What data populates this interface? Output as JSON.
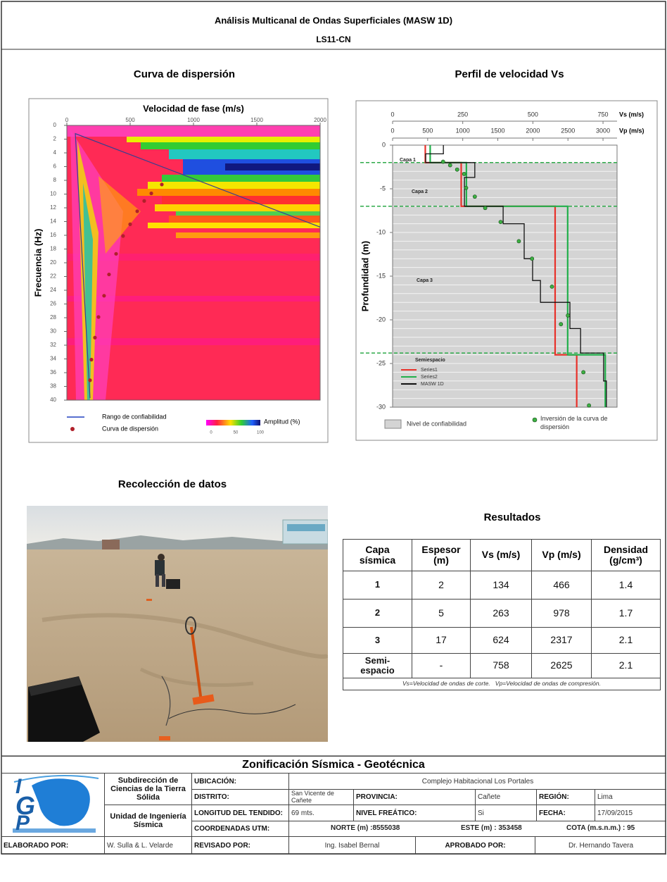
{
  "header": {
    "title": "Análisis Multicanal de Ondas Superficiales (MASW 1D)",
    "subtitle": "LS11-CN"
  },
  "chart_data": [
    {
      "type": "heatmap",
      "title": "Curva de dispersión",
      "x_label": "Velocidad de fase (m/s)",
      "y_label": "Frecuencia (Hz)",
      "xlim": [
        0,
        2000
      ],
      "xticks": [
        0,
        500,
        1000,
        1500,
        2000
      ],
      "ylim": [
        0,
        40
      ],
      "y_inverted": true,
      "yticks": [
        0,
        2,
        4,
        6,
        8,
        10,
        12,
        14,
        16,
        18,
        20,
        22,
        24,
        26,
        28,
        30,
        32,
        34,
        36,
        38,
        40
      ],
      "series": [
        {
          "name": "Rango de confiabilidad",
          "type": "line",
          "color": "#3a3f8f",
          "x": [
            2000,
            67,
            183
          ],
          "values": [
            14.8,
            1.2,
            39.7
          ]
        },
        {
          "name": "Curva de dispersión",
          "type": "scatter",
          "color": "#b0202a",
          "x": [
            750,
            667,
            611,
            556,
            500,
            444,
            389,
            333,
            294,
            250,
            222,
            194,
            183
          ],
          "values": [
            8.6,
            9.9,
            11.0,
            12.5,
            14.4,
            16.1,
            18.7,
            21.7,
            24.8,
            27.9,
            30.9,
            34.1,
            37.1
          ]
        }
      ],
      "colorbar": {
        "label": "Amplitud (%)",
        "ticks": [
          0,
          50,
          100
        ]
      }
    },
    {
      "type": "line",
      "title": "Perfil de velocidad Vs",
      "x_label": "Vs (m/s)",
      "x2_label": "Vp (m/s)",
      "y_label": "Profundidad (m)",
      "xlim": [
        0,
        800
      ],
      "xticks": [
        0,
        250,
        500,
        750
      ],
      "x2lim": [
        0,
        3200
      ],
      "x2ticks": [
        0,
        500,
        1000,
        1500,
        2000,
        2500,
        3000
      ],
      "ylim": [
        -30,
        0
      ],
      "yticks": [
        0,
        -5,
        -10,
        -15,
        -20,
        -25,
        -30
      ],
      "minor_grid": 1,
      "band": {
        "name": "Nivel de confiabilidad",
        "from": -2,
        "to": -30,
        "color": "#d4d4d4"
      },
      "layer_boundaries": [
        -2,
        -7,
        -23.8
      ],
      "boundary_color": "#2eaa4a",
      "annotations": [
        "Capa 1",
        "Capa 2",
        "Capa 3",
        "Semiespacio"
      ],
      "series": [
        {
          "name": "Series1",
          "type": "line",
          "axis": "x2",
          "color": "#e8312a",
          "x": [
            466,
            466,
            978,
            978,
            2317,
            2317,
            2625,
            2625
          ],
          "values": [
            0,
            -2,
            -2,
            -7,
            -7,
            -24,
            -24,
            -30
          ]
        },
        {
          "name": "Series2",
          "type": "line",
          "color": "#22b04b",
          "x": [
            134,
            134,
            263,
            263,
            624,
            624,
            758,
            758
          ],
          "values": [
            0,
            -2,
            -2,
            -7,
            -7,
            -24,
            -24,
            -30
          ]
        },
        {
          "name": "MASW 1D",
          "type": "line",
          "color": "#111111",
          "x": [
            181,
            181,
            118,
            118,
            293,
            293,
            256,
            256,
            394,
            394,
            469,
            469,
            499,
            499,
            527,
            527,
            632,
            632,
            670,
            670,
            752,
            752,
            762,
            762
          ],
          "values": [
            0,
            -1,
            -1,
            -2,
            -2,
            -3.7,
            -3.7,
            -7,
            -7,
            -9,
            -9,
            -13,
            -13,
            -15.5,
            -15.5,
            -18,
            -18,
            -21,
            -21,
            -23.8,
            -23.8,
            -27,
            -27,
            -30
          ]
        },
        {
          "name": "Inversión de la curva de dispersión",
          "type": "scatter",
          "color": "#3cb043",
          "x": [
            180,
            205,
            230,
            255,
            262,
            293,
            330,
            385,
            450,
            497,
            568,
            625,
            600,
            680,
            700
          ],
          "values": [
            -1.9,
            -2.3,
            -2.8,
            -3.3,
            -4.9,
            -5.9,
            -7.2,
            -8.8,
            -11,
            -13,
            -16.2,
            -19.5,
            -20.5,
            -26,
            -29.8
          ]
        }
      ]
    }
  ],
  "photo": {
    "title": "Recolección de datos"
  },
  "results": {
    "title": "Resultados",
    "headers": [
      "Capa sísmica",
      "Espesor (m)",
      "Vs (m/s)",
      "Vp (m/s)",
      "Densidad (g/cm³)"
    ],
    "rows": [
      [
        "1",
        "2",
        "134",
        "466",
        "1.4"
      ],
      [
        "2",
        "5",
        "263",
        "978",
        "1.7"
      ],
      [
        "3",
        "17",
        "624",
        "2317",
        "2.1"
      ],
      [
        "Semi-espacio",
        "-",
        "758",
        "2625",
        "2.1"
      ]
    ],
    "note": "Vs=Velocidad de ondas de corte.   Vp=Velocidad de ondas de compresión."
  },
  "footer": {
    "title": "Zonificación Sísmica - Geotécnica",
    "logo": [
      "I",
      "G",
      "P"
    ],
    "unit_1": "Subdirección de Ciencias de la Tierra Sólida",
    "unit_2": "Unidad de Ingeniería Sísmica",
    "fields": {
      "ubicacion": {
        "label": "UBICACIÓN:",
        "value": "Complejo Habitacional Los Portales"
      },
      "distrito": {
        "label": "DISTRITO:",
        "value": "San Vicente de Cañete"
      },
      "provincia": {
        "label": "PROVINCIA:",
        "value": "Cañete"
      },
      "region": {
        "label": "REGIÓN:",
        "value": "Lima"
      },
      "longitud": {
        "label": "LONGITUD DEL TENDIDO:",
        "value": "69 mts."
      },
      "nivel": {
        "label": "NIVEL FREÁTICO:",
        "value": "Si"
      },
      "fecha": {
        "label": "FECHA:",
        "value": "17/09/2015"
      },
      "coordenadas": {
        "label": "COORDENADAS UTM:",
        "norte": "NORTE (m) :8555038",
        "este": "ESTE (m) : 353458",
        "cota": "COTA (m.s.n.m.) : 95"
      },
      "elaborado": {
        "label": "ELABORADO POR:",
        "value": "W. Sulla & L. Velarde"
      },
      "revisado": {
        "label": "REVISADO POR:",
        "value": "Ing. Isabel Bernal"
      },
      "aprobado": {
        "label": "APROBADO POR:",
        "value": "Dr. Hernando Tavera"
      }
    }
  }
}
